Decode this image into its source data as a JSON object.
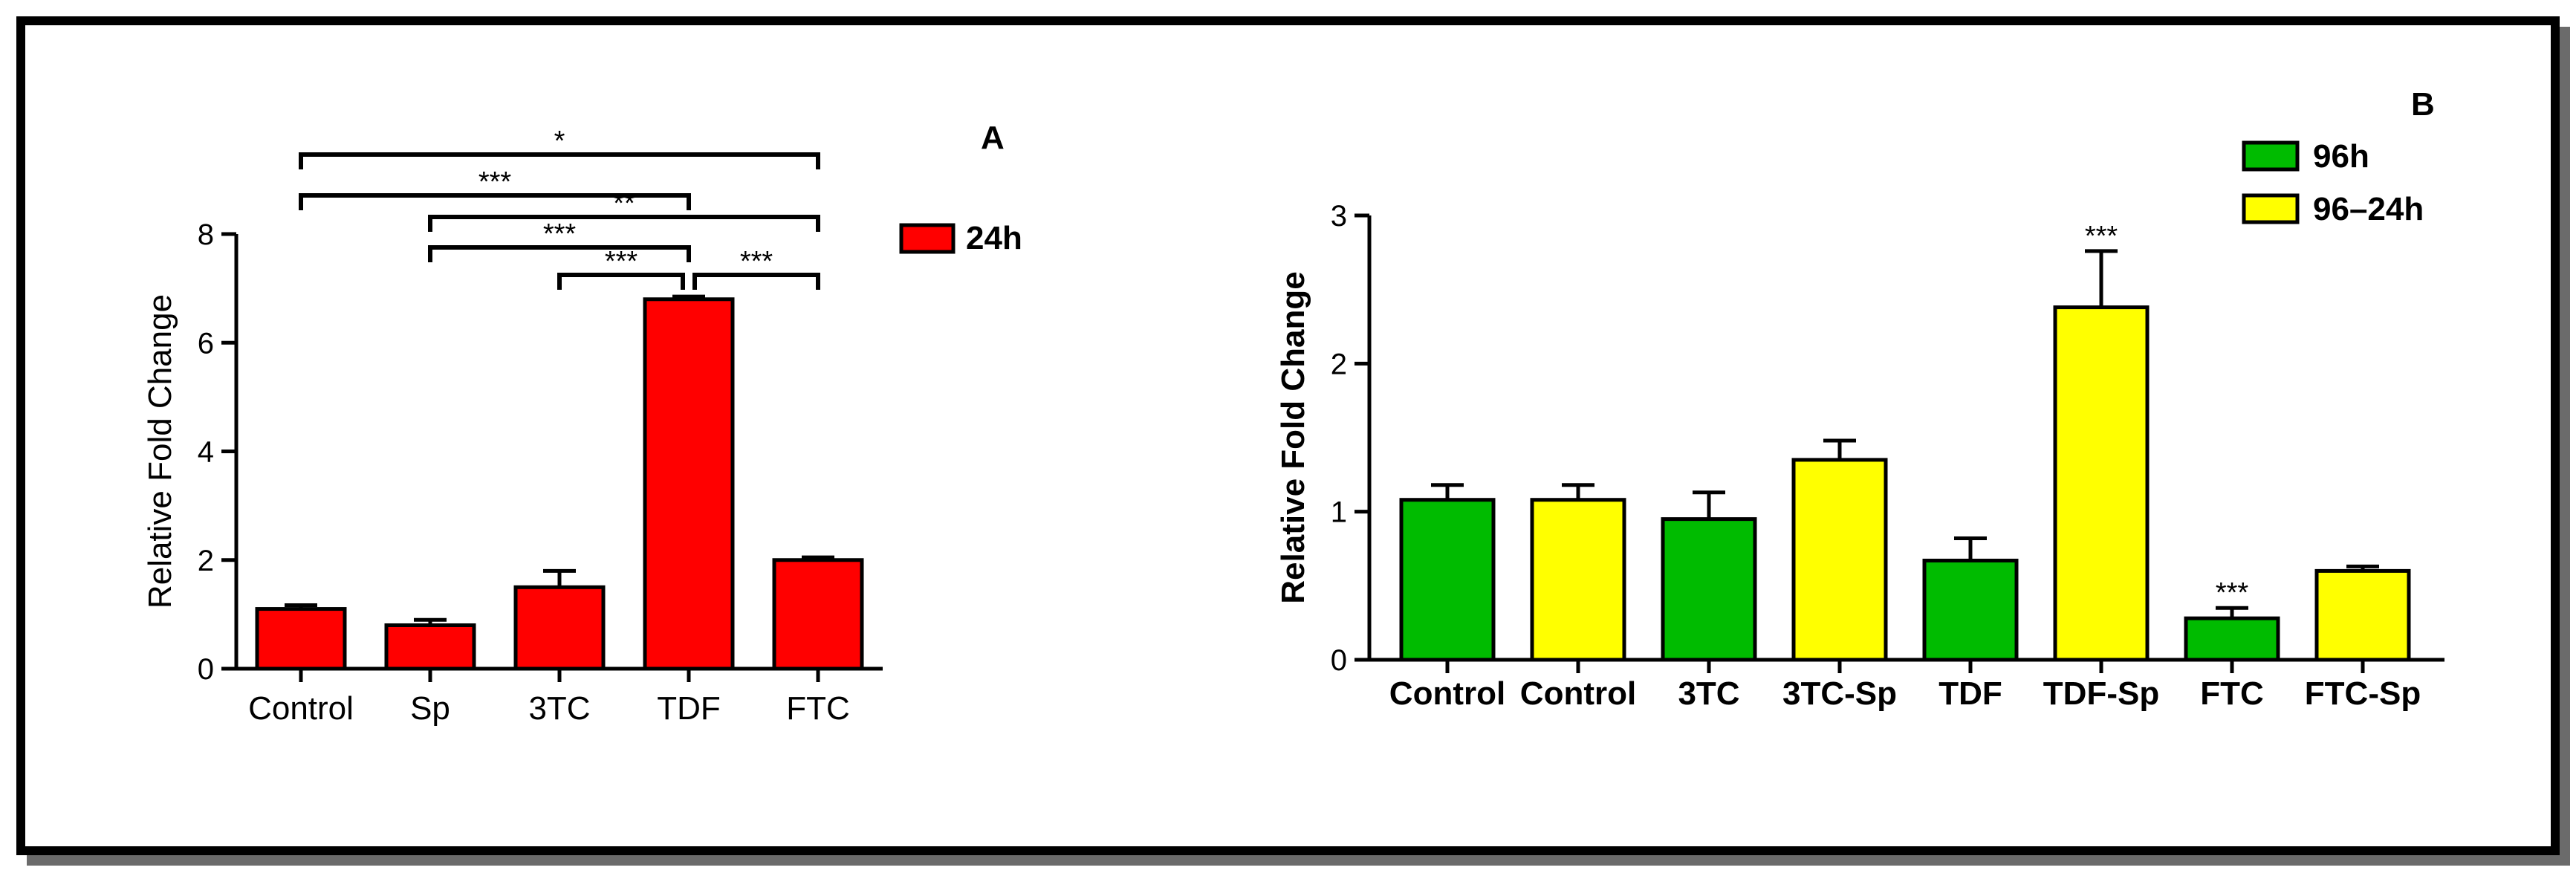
{
  "chart_data": [
    {
      "type": "bar",
      "panel_label": "A",
      "ylabel": "Relative Fold Change",
      "ylim": [
        0,
        8
      ],
      "yticks": [
        "0",
        "2",
        "4",
        "6",
        "8"
      ],
      "categories": [
        "Control",
        "Sp",
        "3TC",
        "TDF",
        "FTC"
      ],
      "series": [
        {
          "name": "24h",
          "color": "#ff0000",
          "values": [
            1.1,
            0.8,
            1.5,
            6.8,
            2.0
          ],
          "errors": [
            0.07,
            0.1,
            0.3,
            0.05,
            0.05
          ]
        }
      ],
      "legend_position": "top-right",
      "significance": [
        {
          "from": 0,
          "to": 4,
          "label": "*"
        },
        {
          "from": 0,
          "to": 3,
          "label": "***"
        },
        {
          "from": 1,
          "to": 4,
          "label": "**"
        },
        {
          "from": 1,
          "to": 3,
          "label": "***"
        },
        {
          "from": 2,
          "to": 3,
          "label": "***"
        },
        {
          "from": 3,
          "to": 4,
          "label": "***"
        }
      ]
    },
    {
      "type": "bar",
      "panel_label": "B",
      "ylabel": "Relative Fold Change",
      "ylim": [
        0,
        3
      ],
      "yticks": [
        "0",
        "1",
        "2",
        "3"
      ],
      "categories": [
        "Control",
        "Control",
        "3TC",
        "3TC-Sp",
        "TDF",
        "TDF-Sp",
        "FTC",
        "FTC-Sp"
      ],
      "bars": [
        {
          "value": 1.08,
          "error": 0.1,
          "series": "96h",
          "label": ""
        },
        {
          "value": 1.08,
          "error": 0.1,
          "series": "96–24h",
          "label": ""
        },
        {
          "value": 0.95,
          "error": 0.18,
          "series": "96h",
          "label": ""
        },
        {
          "value": 1.35,
          "error": 0.13,
          "series": "96–24h",
          "label": ""
        },
        {
          "value": 0.67,
          "error": 0.15,
          "series": "96h",
          "label": ""
        },
        {
          "value": 2.38,
          "error": 0.38,
          "series": "96–24h",
          "label": "***"
        },
        {
          "value": 0.28,
          "error": 0.07,
          "series": "96h",
          "label": "***"
        },
        {
          "value": 0.6,
          "error": 0.03,
          "series": "96–24h",
          "label": ""
        }
      ],
      "series": [
        {
          "name": "96h",
          "color": "#00bb00"
        },
        {
          "name": "96–24h",
          "color": "#ffff00"
        }
      ],
      "legend_position": "top-right"
    }
  ]
}
